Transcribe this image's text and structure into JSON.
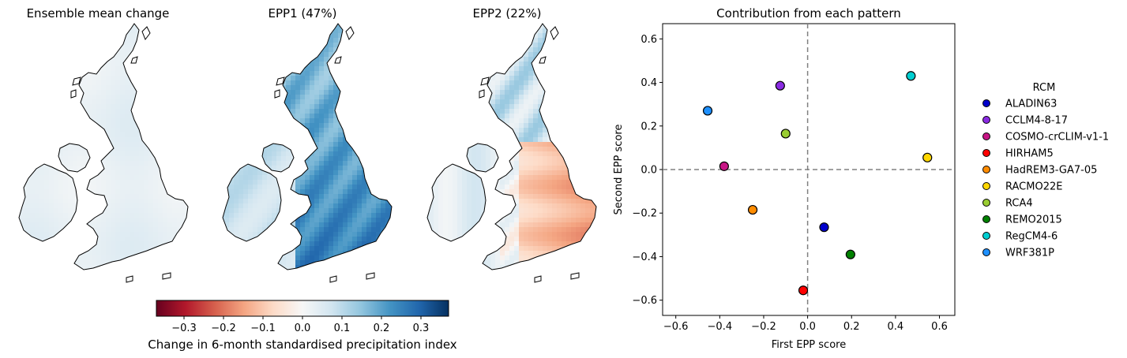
{
  "maps": [
    {
      "title": "Ensemble mean change",
      "pattern": "mean"
    },
    {
      "title": "EPP1 (47%)",
      "pattern": "epp1"
    },
    {
      "title": "EPP2 (22%)",
      "pattern": "epp2"
    }
  ],
  "colorbar": {
    "label": "Change in 6-month standardised precipitation index",
    "range": [
      -0.37,
      0.37
    ],
    "ticks": [
      -0.3,
      -0.2,
      -0.1,
      0.0,
      0.1,
      0.2,
      0.3
    ],
    "tick_labels": [
      "−0.3",
      "−0.2",
      "−0.1",
      "0.0",
      "0.1",
      "0.2",
      "0.3"
    ],
    "colormap": "RdBu",
    "stops": [
      "#67001f",
      "#b2182b",
      "#d6604d",
      "#f4a582",
      "#fddbc7",
      "#f7f7f7",
      "#d1e5f0",
      "#92c5de",
      "#4393c3",
      "#2166ac",
      "#053061"
    ]
  },
  "chart_data": {
    "type": "scatter",
    "title": "Contribution from each pattern",
    "xlabel": "First EPP score",
    "ylabel": "Second EPP score",
    "xlim": [
      -0.66,
      0.67
    ],
    "ylim": [
      -0.67,
      0.67
    ],
    "xticks": [
      -0.6,
      -0.4,
      -0.2,
      0.0,
      0.2,
      0.4,
      0.6
    ],
    "yticks": [
      -0.6,
      -0.4,
      -0.2,
      0.0,
      0.2,
      0.4,
      0.6
    ],
    "xtick_labels": [
      "−0.6",
      "−0.4",
      "−0.2",
      "0.0",
      "0.2",
      "0.4",
      "0.6"
    ],
    "ytick_labels": [
      "−0.6",
      "−0.4",
      "−0.2",
      "0.0",
      "0.2",
      "0.4",
      "0.6"
    ],
    "reference_lines": {
      "x": 0.0,
      "y": 0.0,
      "style": "dashed",
      "color": "#808080"
    },
    "legend": {
      "title": "RCM",
      "placement": "right"
    },
    "series": [
      {
        "name": "ALADIN63",
        "color": "#0000cc",
        "x": 0.075,
        "y": -0.265
      },
      {
        "name": "CCLM4-8-17",
        "color": "#8a2be2",
        "x": -0.125,
        "y": 0.385
      },
      {
        "name": "COSMO-crCLIM-v1-1",
        "color": "#c71585",
        "x": -0.38,
        "y": 0.015
      },
      {
        "name": "HIRHAM5",
        "color": "#ff0000",
        "x": -0.02,
        "y": -0.555
      },
      {
        "name": "HadREM3-GA7-05",
        "color": "#ff8c00",
        "x": -0.25,
        "y": -0.185
      },
      {
        "name": "RACMO22E",
        "color": "#ffd700",
        "x": 0.545,
        "y": 0.055
      },
      {
        "name": "RCA4",
        "color": "#9acd32",
        "x": -0.1,
        "y": 0.165
      },
      {
        "name": "REMO2015",
        "color": "#008000",
        "x": 0.195,
        "y": -0.39
      },
      {
        "name": "RegCM4-6",
        "color": "#00ced1",
        "x": 0.47,
        "y": 0.43
      },
      {
        "name": "WRF381P",
        "color": "#1e90ff",
        "x": -0.455,
        "y": 0.27
      }
    ]
  }
}
